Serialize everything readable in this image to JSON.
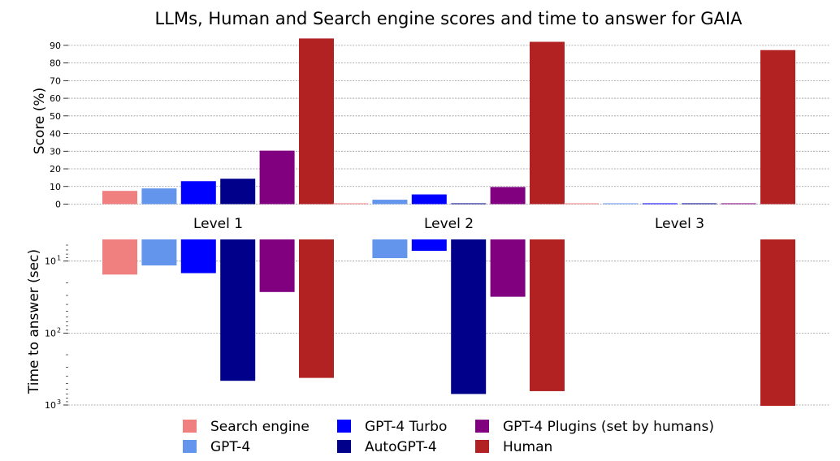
{
  "chart_data": {
    "type": "bar",
    "title": "LLMs, Human and Search engine scores and time to answer for GAIA",
    "categories": [
      "Level 1",
      "Level 2",
      "Level 3"
    ],
    "series": [
      {
        "name": "Search engine",
        "color": "#f08080"
      },
      {
        "name": "GPT-4",
        "color": "#6495ed"
      },
      {
        "name": "GPT-4 Turbo",
        "color": "#0000ff"
      },
      {
        "name": "AutoGPT-4",
        "color": "#00008b"
      },
      {
        "name": "GPT-4 Plugins (set by humans)",
        "color": "#800080"
      },
      {
        "name": "Human",
        "color": "#b22222"
      }
    ],
    "score": {
      "ylabel": "Score (%)",
      "ylim": [
        0,
        95
      ],
      "yticks": [
        0,
        10,
        20,
        30,
        40,
        50,
        60,
        70,
        80,
        90
      ],
      "grid": true,
      "values": [
        [
          7.5,
          8.9,
          13.0,
          14.4,
          30.3,
          93.9
        ],
        [
          0.0,
          2.5,
          5.5,
          0.4,
          9.7,
          92.0
        ],
        [
          0.0,
          0.0,
          0.0,
          0.0,
          0.0,
          87.3
        ]
      ]
    },
    "time": {
      "ylabel": "Time to answer (sec)",
      "scale": "log",
      "inverted": true,
      "ylim": [
        5,
        1000
      ],
      "yticks": [
        10,
        100,
        1000
      ],
      "yticklabels": [
        "10",
        "10",
        "10"
      ],
      "yticklabel_exponents": [
        "1",
        "2",
        "3"
      ],
      "grid": true,
      "values": [
        [
          15.4,
          11.5,
          14.7,
          461,
          26.9,
          420
        ],
        [
          null,
          9.1,
          7.2,
          703,
          31.3,
          642
        ],
        [
          null,
          null,
          null,
          null,
          null,
          1100
        ]
      ]
    },
    "legend": {
      "placement": "bottom-center",
      "columns": 3
    }
  }
}
